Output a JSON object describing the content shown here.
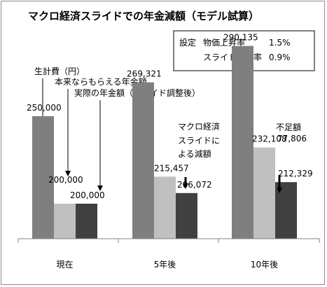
{
  "chart_data": {
    "type": "bar",
    "title": "マクロ経済スライドでの年金減額（モデル試算）",
    "categories": [
      "現在",
      "5年後",
      "10年後"
    ],
    "series": [
      {
        "name": "生計費（円）",
        "values": [
          250000,
          269321,
          290135
        ],
        "color": "#7f7f7f"
      },
      {
        "name": "本来ならもらえる年金額",
        "values": [
          200000,
          215457,
          232108
        ],
        "color": "#c0c0c0"
      },
      {
        "name": "実際の年金額（スライド調整後）",
        "values": [
          200000,
          206072,
          212329
        ],
        "color": "#404040"
      }
    ],
    "data_labels": [
      [
        "250,000",
        "200,000",
        "200,000"
      ],
      [
        "269,321",
        "215,457",
        "206,072"
      ],
      [
        "290,135",
        "232,108",
        "212,329"
      ]
    ],
    "ylim": [
      150000,
      300000
    ],
    "grid": false,
    "settings_box": {
      "heading": "設定",
      "rows": [
        {
          "label": "物価上昇率",
          "value": "1.5%"
        },
        {
          "label": "スライド調整率",
          "value": "0.9%"
        }
      ]
    },
    "annotations": {
      "macro_slide_lines": [
        "マクロ経済",
        "スライドに",
        "よる減額"
      ],
      "shortfall_label": "不足額",
      "shortfall_value": "77,806"
    }
  }
}
